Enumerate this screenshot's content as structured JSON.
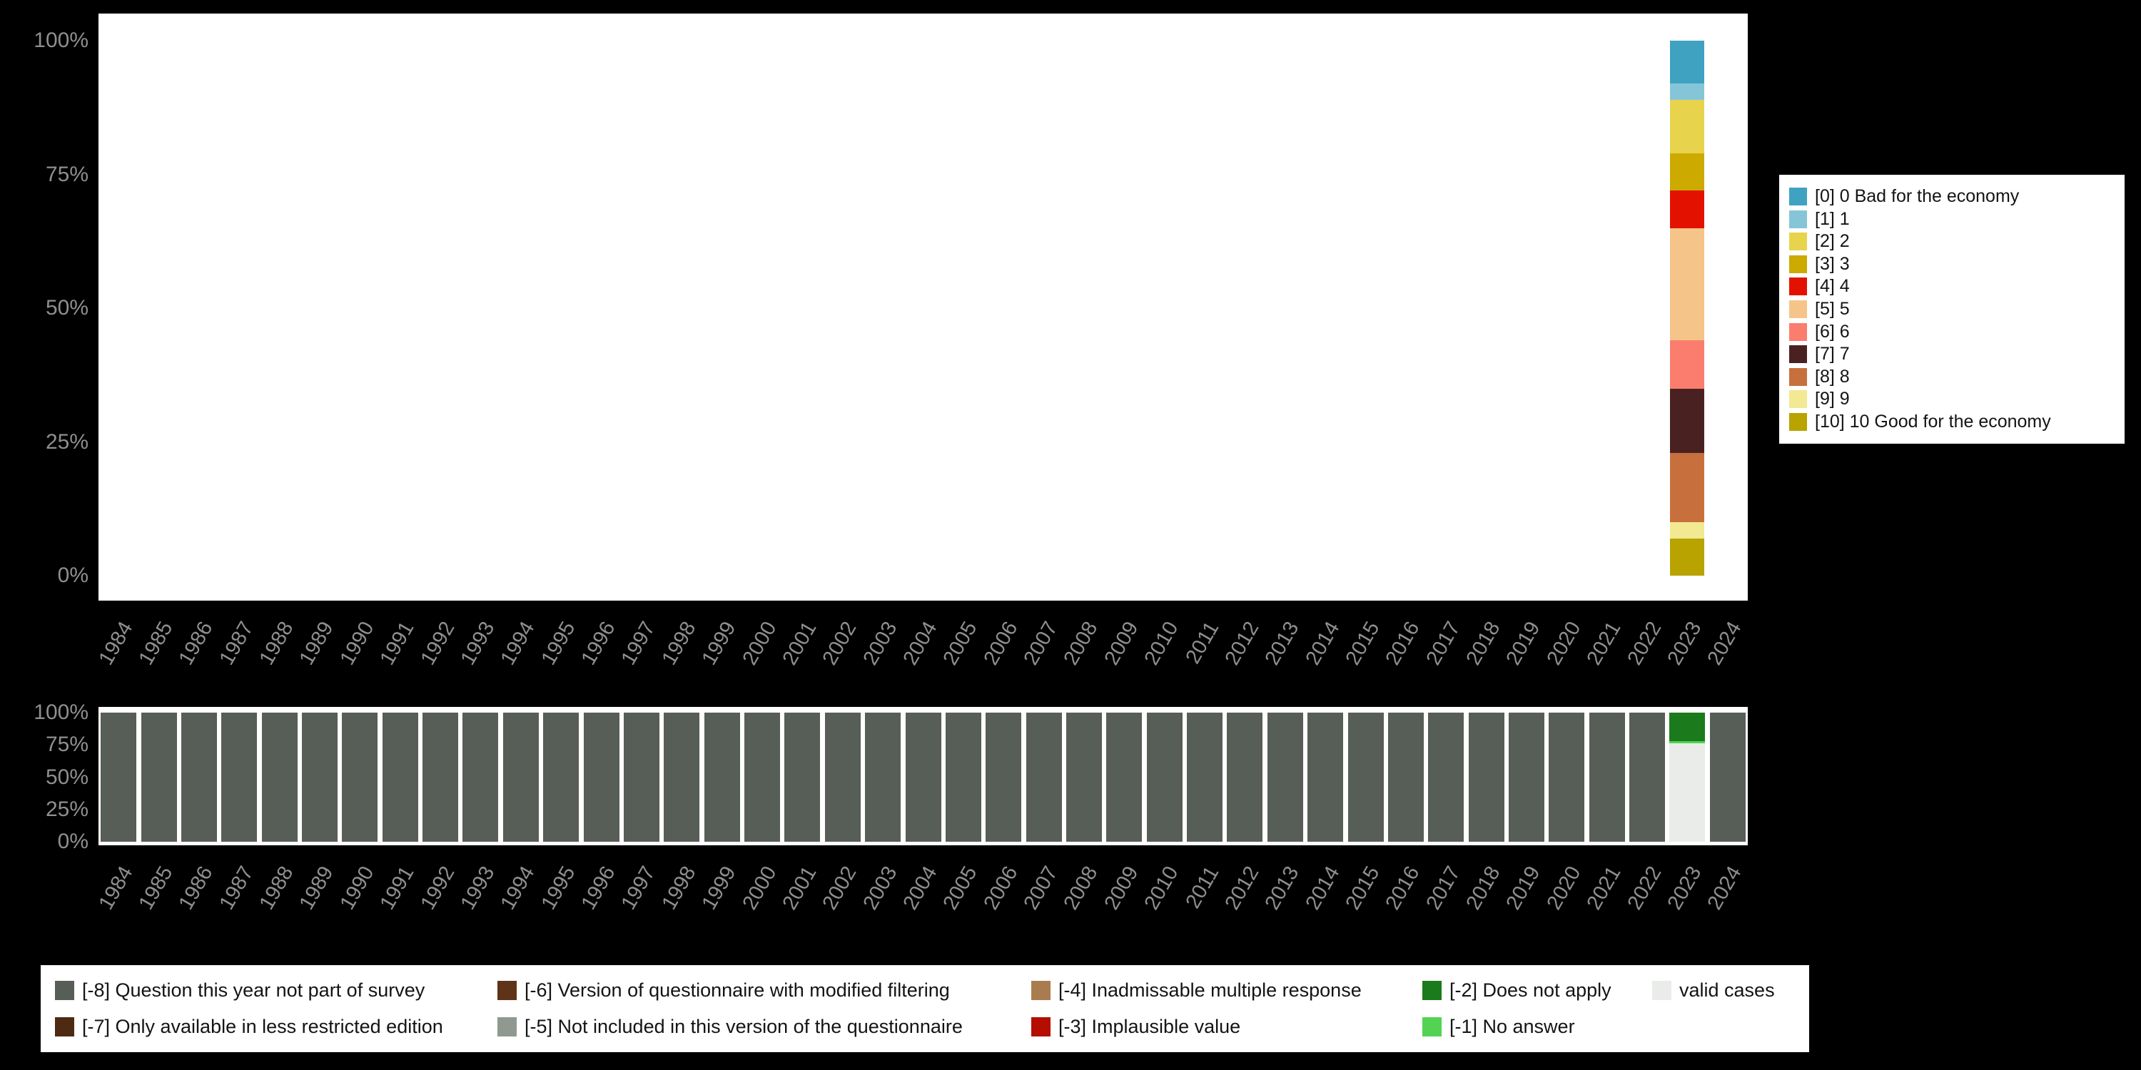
{
  "page": {
    "background_color": "#000000",
    "plot_background_color": "#ffffff",
    "axis_text_color": "#8f8f8f"
  },
  "legends": {
    "answers": {
      "position": "right",
      "items": [
        {
          "label": "[0] 0 Bad for the economy",
          "color": "#3fa2c0"
        },
        {
          "label": "[1] 1",
          "color": "#84c6d8"
        },
        {
          "label": "[2] 2",
          "color": "#e8d34c"
        },
        {
          "label": "[3] 3",
          "color": "#ccaa00"
        },
        {
          "label": "[4] 4",
          "color": "#e31200"
        },
        {
          "label": "[5] 5",
          "color": "#f5c488"
        },
        {
          "label": "[6] 6",
          "color": "#fb7d6e"
        },
        {
          "label": "[7] 7",
          "color": "#4a2121"
        },
        {
          "label": "[8] 8",
          "color": "#c8703d"
        },
        {
          "label": "[9] 9",
          "color": "#f2e992"
        },
        {
          "label": "[10] 10 Good for the economy",
          "color": "#b8a300"
        }
      ]
    },
    "missing": {
      "position": "bottom",
      "items": [
        {
          "label": "[-8] Question this year not part of survey",
          "color": "#575d57"
        },
        {
          "label": "[-7] Only available in less restricted edition",
          "color": "#4e2a12"
        },
        {
          "label": "[-6] Version of questionnaire with modified filtering",
          "color": "#5e3317"
        },
        {
          "label": "[-5] Not included in this version of the questionnaire",
          "color": "#8f998f"
        },
        {
          "label": "[-4] Inadmissable multiple response",
          "color": "#a87c4f"
        },
        {
          "label": "[-3] Implausible value",
          "color": "#b50d00"
        },
        {
          "label": "[-2] Does not apply",
          "color": "#1b7a1b"
        },
        {
          "label": "[-1] No answer",
          "color": "#52d352"
        },
        {
          "label": "valid cases",
          "color": "#e9ece9"
        }
      ]
    }
  },
  "chart_data": [
    {
      "type": "bar",
      "stacked": true,
      "units": "percent",
      "grid": false,
      "legend_ref": "answers",
      "legend_position": "right",
      "categories": [
        "1984",
        "1985",
        "1986",
        "1987",
        "1988",
        "1989",
        "1990",
        "1991",
        "1992",
        "1993",
        "1994",
        "1995",
        "1996",
        "1997",
        "1998",
        "1999",
        "2000",
        "2001",
        "2002",
        "2003",
        "2004",
        "2005",
        "2006",
        "2007",
        "2008",
        "2009",
        "2010",
        "2011",
        "2012",
        "2013",
        "2014",
        "2015",
        "2016",
        "2017",
        "2018",
        "2019",
        "2020",
        "2021",
        "2022",
        "2023",
        "2024"
      ],
      "y_axis": {
        "ylim": [
          0,
          100
        ],
        "ticks": [
          {
            "label": "100%",
            "value": 100
          },
          {
            "label": "75%",
            "value": 75
          },
          {
            "label": "50%",
            "value": 50
          },
          {
            "label": "25%",
            "value": 25
          },
          {
            "label": "0%",
            "value": 0
          }
        ]
      },
      "bars": {
        "2023": [
          {
            "name": "[0] 0 Bad for the economy",
            "value": 8
          },
          {
            "name": "[1] 1",
            "value": 3
          },
          {
            "name": "[2] 2",
            "value": 10
          },
          {
            "name": "[3] 3",
            "value": 7
          },
          {
            "name": "[4] 4",
            "value": 7
          },
          {
            "name": "[5] 5",
            "value": 21
          },
          {
            "name": "[6] 6",
            "value": 9
          },
          {
            "name": "[7] 7",
            "value": 12
          },
          {
            "name": "[8] 8",
            "value": 13
          },
          {
            "name": "[9] 9",
            "value": 3
          },
          {
            "name": "[10] 10 Good for the economy",
            "value": 7
          }
        ]
      },
      "default_bar": []
    },
    {
      "type": "bar",
      "stacked": true,
      "units": "percent",
      "grid": false,
      "legend_ref": "missing",
      "legend_position": "bottom",
      "categories": [
        "1984",
        "1985",
        "1986",
        "1987",
        "1988",
        "1989",
        "1990",
        "1991",
        "1992",
        "1993",
        "1994",
        "1995",
        "1996",
        "1997",
        "1998",
        "1999",
        "2000",
        "2001",
        "2002",
        "2003",
        "2004",
        "2005",
        "2006",
        "2007",
        "2008",
        "2009",
        "2010",
        "2011",
        "2012",
        "2013",
        "2014",
        "2015",
        "2016",
        "2017",
        "2018",
        "2019",
        "2020",
        "2021",
        "2022",
        "2023",
        "2024"
      ],
      "y_axis": {
        "ylim": [
          0,
          100
        ],
        "ticks": [
          {
            "label": "100%",
            "value": 100
          },
          {
            "label": "75%",
            "value": 75
          },
          {
            "label": "50%",
            "value": 50
          },
          {
            "label": "25%",
            "value": 25
          },
          {
            "label": "0%",
            "value": 0
          }
        ]
      },
      "bars": {
        "2023": [
          {
            "name": "[-2] Does not apply",
            "value": 22
          },
          {
            "name": "[-1] No answer",
            "value": 2
          },
          {
            "name": "valid cases",
            "value": 76
          }
        ]
      },
      "default_bar": [
        {
          "name": "[-8] Question this year not part of survey",
          "value": 100
        }
      ]
    }
  ]
}
